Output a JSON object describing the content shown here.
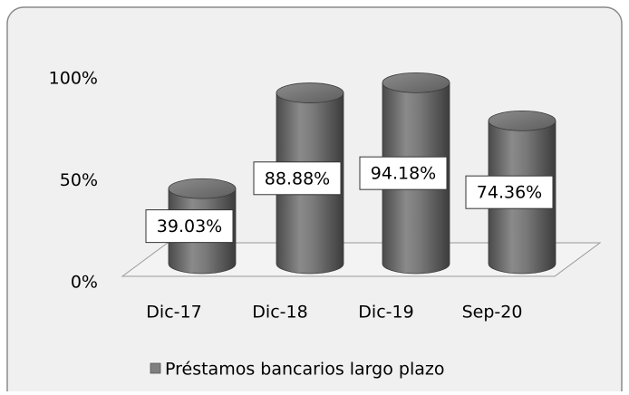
{
  "chart_data": {
    "type": "cylinder",
    "categories": [
      "Dic-17",
      "Dic-18",
      "Dic-19",
      "Sep-20"
    ],
    "series": [
      {
        "name": "Préstamos bancarios largo plazo",
        "color": "#7f7f7f",
        "values": [
          39.03,
          88.88,
          94.18,
          74.36
        ],
        "value_labels": [
          "39.03%",
          "88.88%",
          "94.18%",
          "74.36%"
        ]
      }
    ],
    "ylim": [
      0,
      100
    ],
    "yticks": [
      {
        "value": 0,
        "label": "0%"
      },
      {
        "value": 50,
        "label": "50%"
      },
      {
        "value": 100,
        "label": "100%"
      }
    ],
    "legend": "bottom"
  }
}
